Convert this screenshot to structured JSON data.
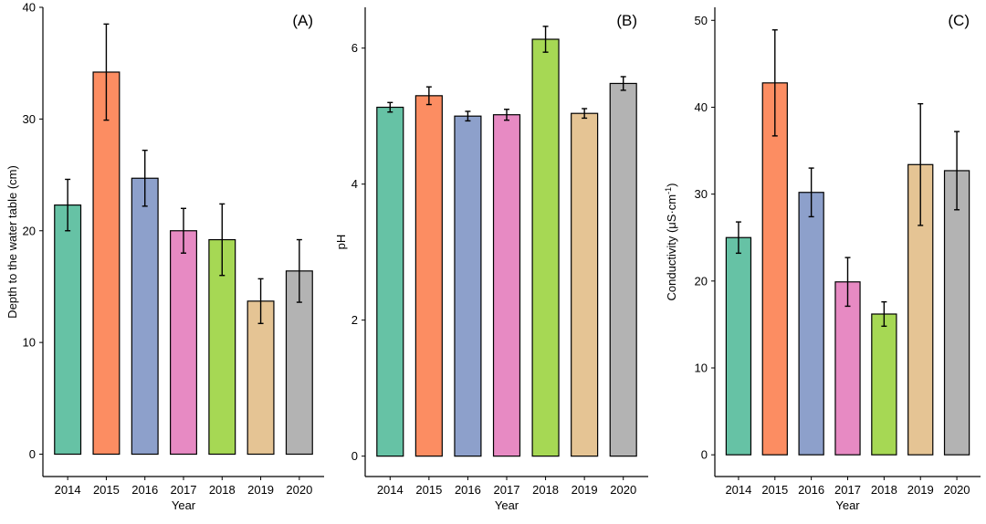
{
  "chart_data": [
    {
      "type": "bar",
      "panel_label": "(A)",
      "xlabel": "Year",
      "ylabel": "Depth to the water table (cm)",
      "categories": [
        "2014",
        "2015",
        "2016",
        "2017",
        "2018",
        "2019",
        "2020"
      ],
      "values": [
        22.3,
        34.2,
        24.7,
        20.0,
        19.2,
        13.7,
        16.4
      ],
      "error": [
        2.3,
        4.3,
        2.5,
        2.0,
        3.2,
        2.0,
        2.8
      ],
      "colors": [
        "#66c2a5",
        "#fc8d62",
        "#8da0cb",
        "#e78ac3",
        "#a6d854",
        "#e5c494",
        "#b3b3b3"
      ],
      "yticks": [
        0,
        10,
        20,
        30,
        40
      ],
      "ylim": [
        -2,
        40
      ],
      "grid": false
    },
    {
      "type": "bar",
      "panel_label": "(B)",
      "xlabel": "Year",
      "ylabel": "pH",
      "categories": [
        "2014",
        "2015",
        "2016",
        "2017",
        "2018",
        "2019",
        "2020"
      ],
      "values": [
        5.13,
        5.3,
        5.0,
        5.02,
        6.13,
        5.04,
        5.48
      ],
      "error": [
        0.07,
        0.13,
        0.07,
        0.08,
        0.19,
        0.07,
        0.1
      ],
      "colors": [
        "#66c2a5",
        "#fc8d62",
        "#8da0cb",
        "#e78ac3",
        "#a6d854",
        "#e5c494",
        "#b3b3b3"
      ],
      "yticks": [
        0,
        2,
        4,
        6
      ],
      "ylim": [
        -0.3,
        6.6
      ],
      "grid": false
    },
    {
      "type": "bar",
      "panel_label": "(C)",
      "xlabel": "Year",
      "ylabel": "Conductivity (μS·cm",
      "ylabel_sup": "-1",
      "ylabel_close": ")",
      "categories": [
        "2014",
        "2015",
        "2016",
        "2017",
        "2018",
        "2019",
        "2020"
      ],
      "values": [
        25.0,
        42.8,
        30.2,
        19.9,
        16.2,
        33.4,
        32.7
      ],
      "error": [
        1.8,
        6.1,
        2.8,
        2.8,
        1.4,
        7.0,
        4.5
      ],
      "colors": [
        "#66c2a5",
        "#fc8d62",
        "#8da0cb",
        "#e78ac3",
        "#a6d854",
        "#e5c494",
        "#b3b3b3"
      ],
      "yticks": [
        0,
        10,
        20,
        30,
        40,
        50
      ],
      "ylim": [
        -2.5,
        51.5
      ],
      "grid": false
    }
  ]
}
